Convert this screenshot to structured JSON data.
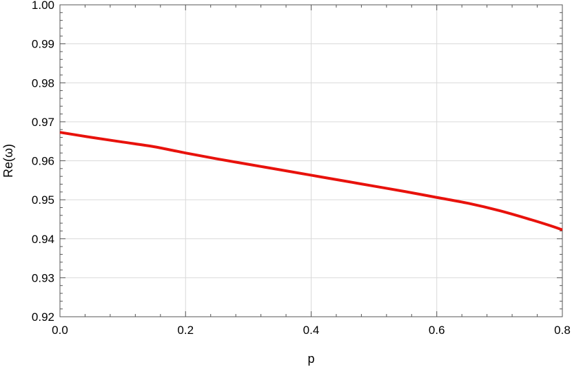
{
  "chart_data": {
    "type": "line",
    "title": "",
    "xlabel": "p",
    "ylabel": "Re(ω)",
    "xlim": [
      0.0,
      0.8
    ],
    "ylim": [
      0.92,
      1.0
    ],
    "x_ticks": [
      0.0,
      0.2,
      0.4,
      0.6,
      0.8
    ],
    "x_tick_labels": [
      "0.0",
      "0.2",
      "0.4",
      "0.6",
      "0.8"
    ],
    "y_ticks": [
      0.92,
      0.93,
      0.94,
      0.95,
      0.96,
      0.97,
      0.98,
      0.99,
      1.0
    ],
    "y_tick_labels": [
      "0.92",
      "0.93",
      "0.94",
      "0.95",
      "0.96",
      "0.97",
      "0.98",
      "0.99",
      "1.00"
    ],
    "grid": true,
    "legend": "none",
    "series": [
      {
        "color": "#e8120c",
        "x": [
          0.0,
          0.05,
          0.1,
          0.15,
          0.2,
          0.25,
          0.3,
          0.35,
          0.4,
          0.45,
          0.5,
          0.55,
          0.6,
          0.65,
          0.7,
          0.75,
          0.78,
          0.8
        ],
        "y": [
          0.9673,
          0.966,
          0.9648,
          0.9636,
          0.962,
          0.9605,
          0.9591,
          0.9577,
          0.9563,
          0.9549,
          0.9535,
          0.9521,
          0.9506,
          0.9491,
          0.9472,
          0.9449,
          0.9434,
          0.9423
        ]
      }
    ]
  }
}
